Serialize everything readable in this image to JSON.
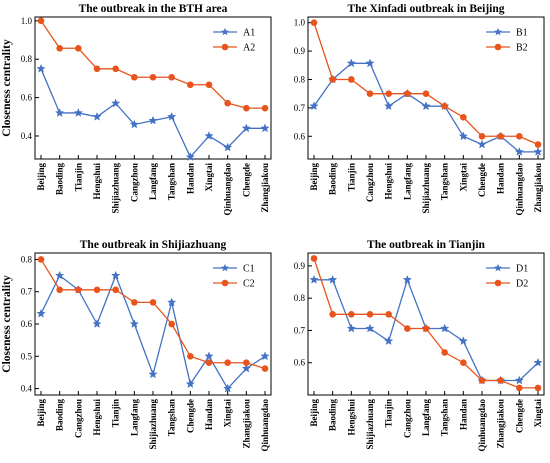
{
  "colors": {
    "blue": "#4472C4",
    "orange": "#E8541C"
  },
  "chart_data": [
    {
      "type": "line",
      "title": "The outbreak in the BTH area",
      "ylabel": "Closeness centrality",
      "xlabel": "",
      "categories": [
        "Beijing",
        "Baoding",
        "Tianjin",
        "Hengshui",
        "Shijiazhuang",
        "Cangzhou",
        "Langfang",
        "Tangshan",
        "Handan",
        "Xingtai",
        "Qinhuangdao",
        "Chengde",
        "Zhangjiakou"
      ],
      "ylim": [
        0.28,
        1.02
      ],
      "yticks": [
        0.4,
        0.6,
        0.8,
        1.0
      ],
      "ytick_labels": [
        "0.4",
        "0.6",
        "0.8",
        "1.0"
      ],
      "legend_position": "top-right",
      "series": [
        {
          "name": "A1",
          "color": "blue",
          "marker": "star",
          "values": [
            0.75,
            0.52,
            0.52,
            0.5,
            0.57,
            0.46,
            0.48,
            0.5,
            0.29,
            0.4,
            0.34,
            0.44,
            0.44
          ]
        },
        {
          "name": "A2",
          "color": "orange",
          "marker": "circle",
          "values": [
            1.0,
            0.857,
            0.857,
            0.75,
            0.75,
            0.706,
            0.706,
            0.706,
            0.667,
            0.667,
            0.571,
            0.545,
            0.545
          ]
        }
      ]
    },
    {
      "type": "line",
      "title": "The Xinfadi outbreak in Beijing",
      "ylabel": "",
      "xlabel": "",
      "categories": [
        "Beijing",
        "Baoding",
        "Tianjin",
        "Cangzhou",
        "Hengshui",
        "Langfang",
        "Shijiazhuang",
        "Tangshan",
        "Xingtai",
        "Chengde",
        "Handan",
        "Qinhuangdao",
        "Zhangjiakou"
      ],
      "ylim": [
        0.52,
        1.02
      ],
      "yticks": [
        0.6,
        0.7,
        0.8,
        0.9,
        1.0
      ],
      "ytick_labels": [
        "0.6",
        "0.7",
        "0.8",
        "0.9",
        "1.0"
      ],
      "legend_position": "top-right",
      "series": [
        {
          "name": "B1",
          "color": "blue",
          "marker": "star",
          "values": [
            0.706,
            0.8,
            0.857,
            0.857,
            0.706,
            0.75,
            0.706,
            0.706,
            0.6,
            0.571,
            0.6,
            0.545,
            0.545
          ]
        },
        {
          "name": "B2",
          "color": "orange",
          "marker": "circle",
          "values": [
            1.0,
            0.8,
            0.8,
            0.75,
            0.75,
            0.75,
            0.75,
            0.706,
            0.667,
            0.6,
            0.6,
            0.6,
            0.571
          ]
        }
      ]
    },
    {
      "type": "line",
      "title": "The outbreak in Shijiazhuang",
      "ylabel": "Closeness centrality",
      "xlabel": "",
      "categories": [
        "Beijing",
        "Baoding",
        "Cangzhou",
        "Hengshui",
        "Tianjin",
        "Langfang",
        "Shijiazhuang",
        "Tangshan",
        "Chengde",
        "Handan",
        "Xingtai",
        "Zhangjiakou",
        "Qinhuangdao"
      ],
      "ylim": [
        0.38,
        0.82
      ],
      "yticks": [
        0.4,
        0.5,
        0.6,
        0.7,
        0.8
      ],
      "ytick_labels": [
        "0.4",
        "0.5",
        "0.6",
        "0.7",
        "0.8"
      ],
      "legend_position": "top-right",
      "series": [
        {
          "name": "C1",
          "color": "blue",
          "marker": "star",
          "values": [
            0.632,
            0.75,
            0.706,
            0.6,
            0.75,
            0.6,
            0.444,
            0.667,
            0.414,
            0.5,
            0.4,
            0.462,
            0.5
          ]
        },
        {
          "name": "C2",
          "color": "orange",
          "marker": "circle",
          "values": [
            0.8,
            0.706,
            0.706,
            0.706,
            0.706,
            0.667,
            0.667,
            0.6,
            0.5,
            0.48,
            0.48,
            0.48,
            0.462
          ]
        }
      ]
    },
    {
      "type": "line",
      "title": "The outbreak in Tianjin",
      "ylabel": "",
      "xlabel": "",
      "categories": [
        "Beijing",
        "Baoding",
        "Hengshui",
        "Shijiazhuang",
        "Tianjin",
        "Cangzhou",
        "Langfang",
        "Tangshan",
        "Handan",
        "Qinhuangdao",
        "Zhangjiakou",
        "Chengde",
        "Xingtai"
      ],
      "ylim": [
        0.5,
        0.94
      ],
      "yticks": [
        0.6,
        0.7,
        0.8,
        0.9
      ],
      "ytick_labels": [
        "0.6",
        "0.7",
        "0.8",
        "0.9"
      ],
      "legend_position": "top-right",
      "series": [
        {
          "name": "D1",
          "color": "blue",
          "marker": "star",
          "values": [
            0.857,
            0.857,
            0.706,
            0.706,
            0.667,
            0.857,
            0.706,
            0.706,
            0.667,
            0.545,
            0.545,
            0.545,
            0.6
          ]
        },
        {
          "name": "D2",
          "color": "orange",
          "marker": "circle",
          "values": [
            0.923,
            0.75,
            0.75,
            0.75,
            0.75,
            0.706,
            0.706,
            0.632,
            0.6,
            0.545,
            0.545,
            0.522,
            0.522
          ]
        }
      ]
    }
  ]
}
